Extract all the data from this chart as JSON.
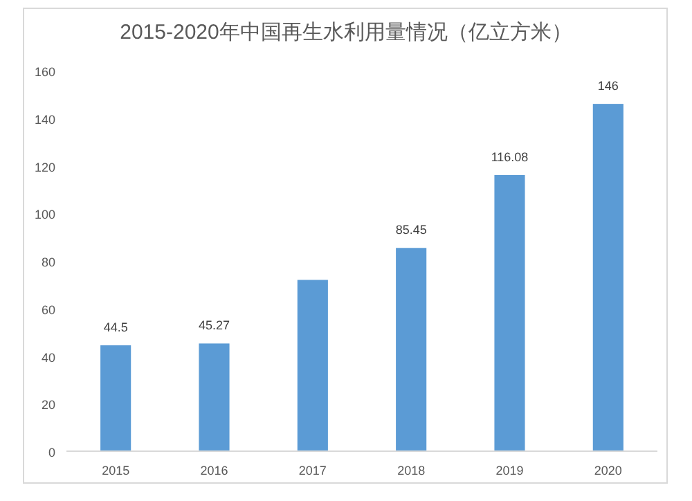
{
  "chart_data": {
    "type": "bar",
    "title": "2015-2020年中国再生水利用量情况（亿立方米）",
    "categories": [
      "2015",
      "2016",
      "2017",
      "2018",
      "2019",
      "2020"
    ],
    "values": [
      44.5,
      45.27,
      72,
      85.45,
      116.08,
      146
    ],
    "value_labels": [
      "44.5",
      "45.27",
      null,
      "85.45",
      "116.08",
      "146"
    ],
    "color": "#5b9bd5",
    "ylim": [
      0,
      160
    ],
    "yticks": [
      0,
      20,
      40,
      60,
      80,
      100,
      120,
      140,
      160
    ],
    "grid": false
  }
}
